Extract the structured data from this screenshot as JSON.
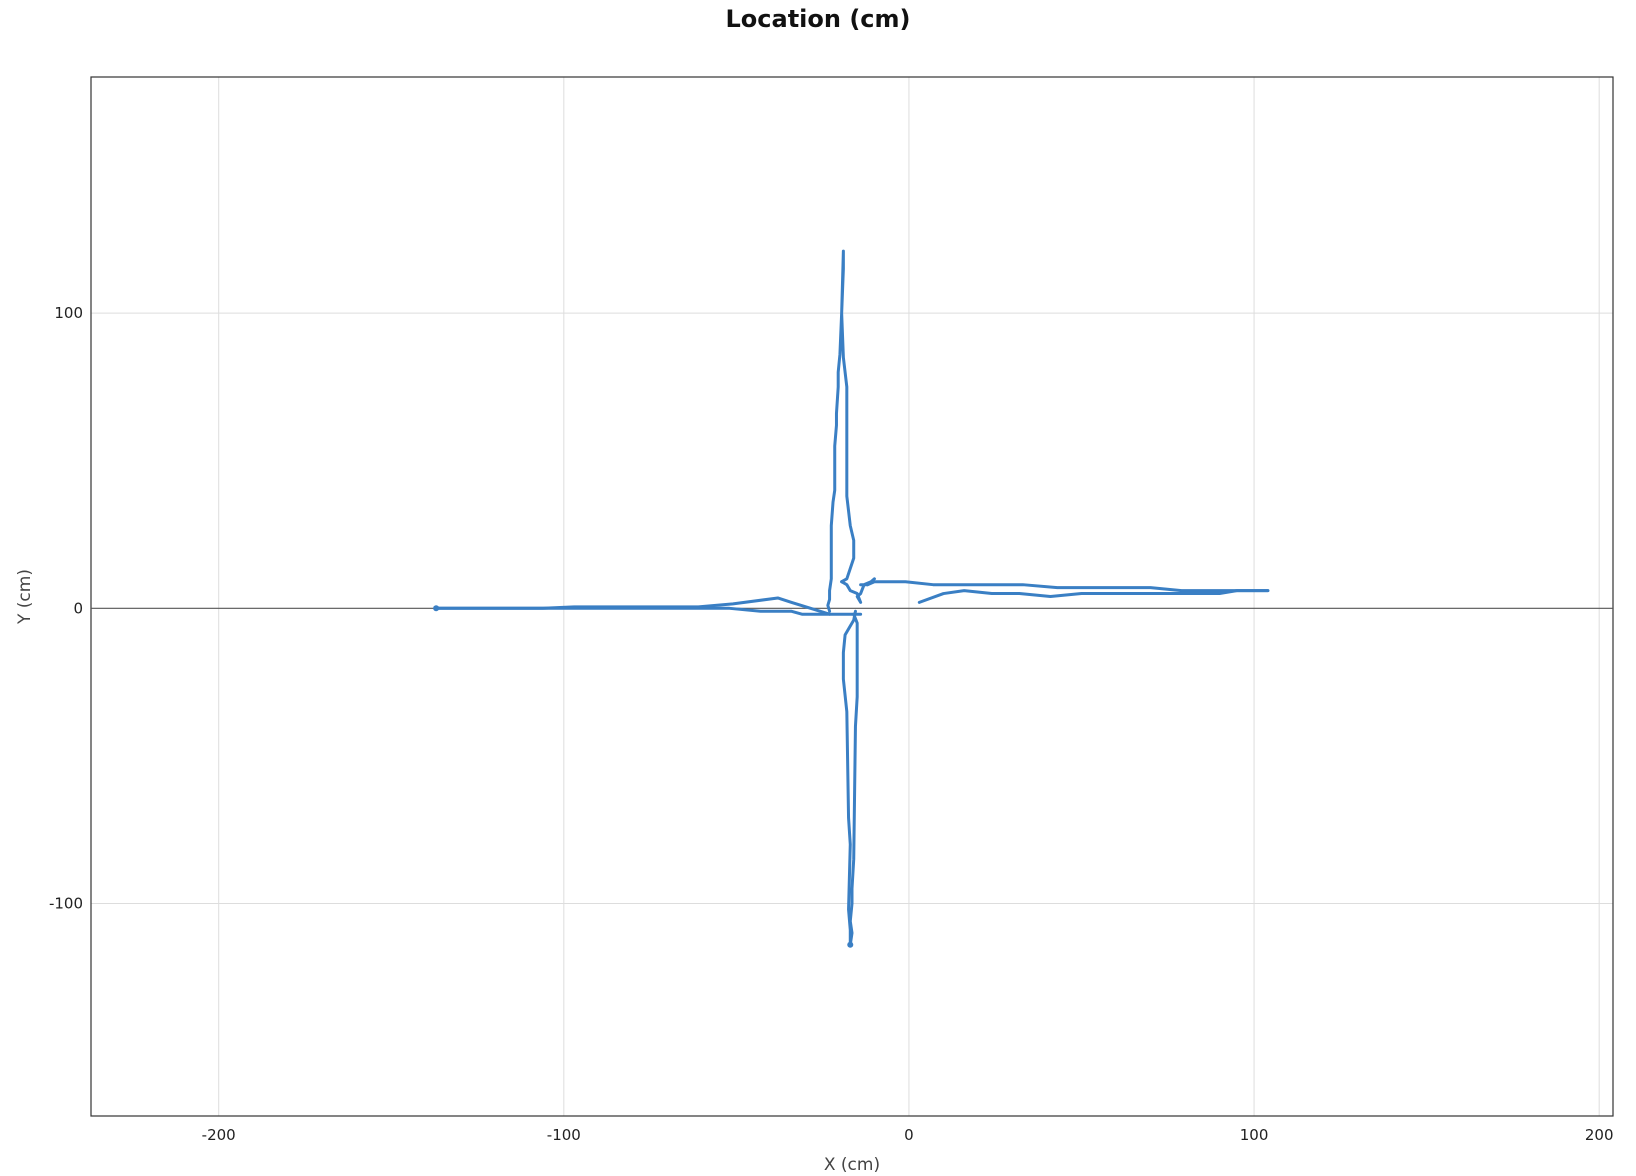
{
  "chart_data": {
    "type": "line",
    "title": "Location (cm)",
    "xlabel": "X (cm)",
    "ylabel": "Y (cm)",
    "xlim": [
      -237,
      204
    ],
    "ylim": [
      -172,
      180
    ],
    "x_ticks": [
      -200,
      -100,
      0,
      100,
      200
    ],
    "y_ticks": [
      -100,
      0,
      100
    ],
    "x_tick_labels": [
      "-200",
      "-100",
      "0",
      "100",
      "200"
    ],
    "y_tick_labels": [
      "-100",
      "0",
      "100"
    ],
    "grid": true,
    "zero_line": true,
    "line_color": "#3a7fc4",
    "series": [
      {
        "x": [
          -137,
          -106,
          -97,
          -61,
          -51,
          -38,
          -34,
          -23,
          -31,
          -43,
          -52,
          -61,
          -97,
          -106,
          -137,
          -137,
          -106,
          -97,
          -61,
          -52,
          -43,
          -31,
          -16,
          -15,
          -15,
          -15.5,
          -16,
          -17,
          -17,
          -18,
          -18,
          -19,
          -18.5,
          -17,
          -16,
          -15,
          -15,
          -15,
          -16,
          -16.5,
          -16,
          -17,
          -18,
          -18.5,
          -19,
          -19,
          -18,
          -17,
          -16,
          -15,
          -14,
          -12,
          -12,
          -13,
          -14,
          -16,
          -17,
          -19,
          -20,
          -21,
          -21,
          -22,
          -22,
          -22.5,
          -23,
          -23,
          -23,
          -23,
          -22,
          -21,
          -21,
          -20.5,
          -20.5,
          -20,
          -19.5,
          -19.5,
          -19,
          -19,
          -19,
          -19,
          -18,
          -18,
          -17,
          -16,
          -16,
          -15,
          -19,
          -16,
          -13,
          -12,
          -13,
          -14,
          -12,
          -12,
          -11,
          -10,
          -11,
          -11,
          -1,
          7,
          33,
          43,
          70,
          79,
          88,
          95,
          104,
          104,
          95,
          90,
          50,
          41,
          32,
          24,
          16,
          10,
          3
        ]
      }
    ]
  }
}
